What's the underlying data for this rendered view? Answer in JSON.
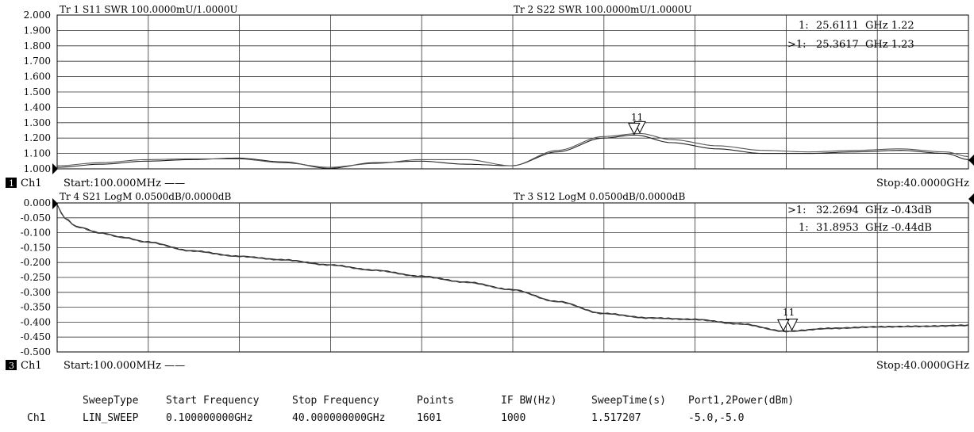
{
  "panels": [
    {
      "trace_a": "Tr 1  S11 SWR 100.0000mU/1.0000U",
      "trace_b": "Tr 2  S22 SWR 100.0000mU/1.0000U",
      "channel_badge": "1",
      "channel_label": "Ch1",
      "start_label": "Start:100.000MHz ——",
      "stop_label": "Stop:40.0000GHz",
      "markers": [
        {
          "prefix": "1:",
          "freq": "25.6111",
          "unit_val": "GHz 1.22"
        },
        {
          "prefix": ">1:",
          "freq": "25.3617",
          "unit_val": "GHz 1.23"
        }
      ],
      "marker_glyph_label": "11"
    },
    {
      "trace_a": "Tr 4  S21 LogM 0.0500dB/0.0000dB",
      "trace_b": "Tr 3  S12 LogM 0.0500dB/0.0000dB",
      "channel_badge": "3",
      "channel_label": "Ch1",
      "start_label": "Start:100.000MHz ——",
      "stop_label": "Stop:40.0000GHz",
      "markers": [
        {
          "prefix": ">1:",
          "freq": "32.2694",
          "unit_val": "GHz -0.43dB"
        },
        {
          "prefix": "1:",
          "freq": "31.8953",
          "unit_val": "GHz -0.44dB"
        }
      ],
      "marker_glyph_label": "11"
    }
  ],
  "settings_table": {
    "row_label": "Ch1",
    "headers": [
      "SweepType",
      "Start Frequency",
      "Stop Frequency",
      "Points",
      "IF BW(Hz)",
      "SweepTime(s)",
      "Port1,2Power(dBm)"
    ],
    "values": [
      "LIN_SWEEP",
      "0.100000000GHz",
      "40.000000000GHz",
      "1601",
      "1000",
      "1.517207",
      "-5.0,-5.0"
    ]
  },
  "chart_data": [
    {
      "type": "line",
      "title": "Tr 1  S11 SWR 100.0000mU/1.0000U / Tr 2  S22 SWR 100.0000mU/1.0000U",
      "xlabel": "",
      "ylabel": "",
      "xlim": [
        0.1,
        40
      ],
      "ylim": [
        1.0,
        2.0
      ],
      "yticks": [
        "2.000",
        "1.900",
        "1.800",
        "1.700",
        "1.600",
        "1.500",
        "1.400",
        "1.300",
        "1.200",
        "1.100",
        "1.000"
      ],
      "grid": true,
      "series": [
        {
          "name": "S11",
          "color": "#222222",
          "x": [
            0.1,
            2,
            4,
            6,
            8,
            10,
            12,
            14,
            16,
            18,
            20,
            22,
            24,
            25.4,
            27,
            29,
            31,
            33,
            35,
            37,
            39,
            40
          ],
          "y": [
            1.01,
            1.03,
            1.05,
            1.06,
            1.07,
            1.045,
            1.003,
            1.04,
            1.05,
            1.03,
            1.02,
            1.11,
            1.2,
            1.22,
            1.17,
            1.13,
            1.1,
            1.1,
            1.11,
            1.12,
            1.1,
            1.06
          ]
        },
        {
          "name": "S22",
          "color": "#555555",
          "x": [
            0.1,
            2,
            4,
            6,
            8,
            10,
            12,
            14,
            16,
            18,
            20,
            22,
            24,
            25.6,
            27,
            29,
            31,
            33,
            35,
            37,
            39,
            40
          ],
          "y": [
            1.02,
            1.04,
            1.06,
            1.065,
            1.065,
            1.04,
            1.01,
            1.035,
            1.06,
            1.06,
            1.02,
            1.12,
            1.21,
            1.23,
            1.19,
            1.15,
            1.12,
            1.11,
            1.12,
            1.13,
            1.11,
            1.08
          ]
        }
      ],
      "markers": [
        {
          "trace": "S22",
          "x": 25.6111,
          "y": 1.22
        },
        {
          "trace": "S11",
          "x": 25.3617,
          "y": 1.23
        }
      ]
    },
    {
      "type": "line",
      "title": "Tr 4  S21 LogM 0.0500dB/0.0000dB / Tr 3  S12 LogM 0.0500dB/0.0000dB",
      "xlabel": "",
      "ylabel": "",
      "xlim": [
        0.1,
        40
      ],
      "ylim": [
        -0.5,
        0.0
      ],
      "yticks": [
        "0.000",
        "-0.050",
        "-0.100",
        "-0.150",
        "-0.200",
        "-0.250",
        "-0.300",
        "-0.350",
        "-0.400",
        "-0.450",
        "-0.500"
      ],
      "grid": true,
      "series": [
        {
          "name": "S21",
          "color": "#222222",
          "x": [
            0.1,
            0.4,
            1,
            2,
            3,
            4,
            6,
            8,
            10,
            12,
            14,
            16,
            18,
            20,
            22,
            24,
            26,
            28,
            30,
            32,
            34,
            36,
            38,
            40
          ],
          "y": [
            -0.005,
            -0.05,
            -0.08,
            -0.1,
            -0.115,
            -0.13,
            -0.16,
            -0.178,
            -0.19,
            -0.207,
            -0.225,
            -0.245,
            -0.265,
            -0.29,
            -0.33,
            -0.37,
            -0.385,
            -0.39,
            -0.405,
            -0.43,
            -0.42,
            -0.415,
            -0.413,
            -0.41
          ]
        },
        {
          "name": "S12",
          "color": "#444444",
          "x": [
            0.1,
            0.4,
            1,
            2,
            3,
            4,
            6,
            8,
            10,
            12,
            14,
            16,
            18,
            20,
            22,
            24,
            26,
            28,
            30,
            32,
            34,
            36,
            38,
            40
          ],
          "y": [
            -0.006,
            -0.052,
            -0.082,
            -0.102,
            -0.117,
            -0.132,
            -0.162,
            -0.18,
            -0.192,
            -0.209,
            -0.227,
            -0.247,
            -0.267,
            -0.292,
            -0.332,
            -0.372,
            -0.387,
            -0.392,
            -0.407,
            -0.432,
            -0.422,
            -0.417,
            -0.415,
            -0.412
          ]
        }
      ],
      "markers": [
        {
          "trace": "S21",
          "x": 32.2694,
          "y": -0.43
        },
        {
          "trace": "S12",
          "x": 31.8953,
          "y": -0.44
        }
      ]
    }
  ]
}
